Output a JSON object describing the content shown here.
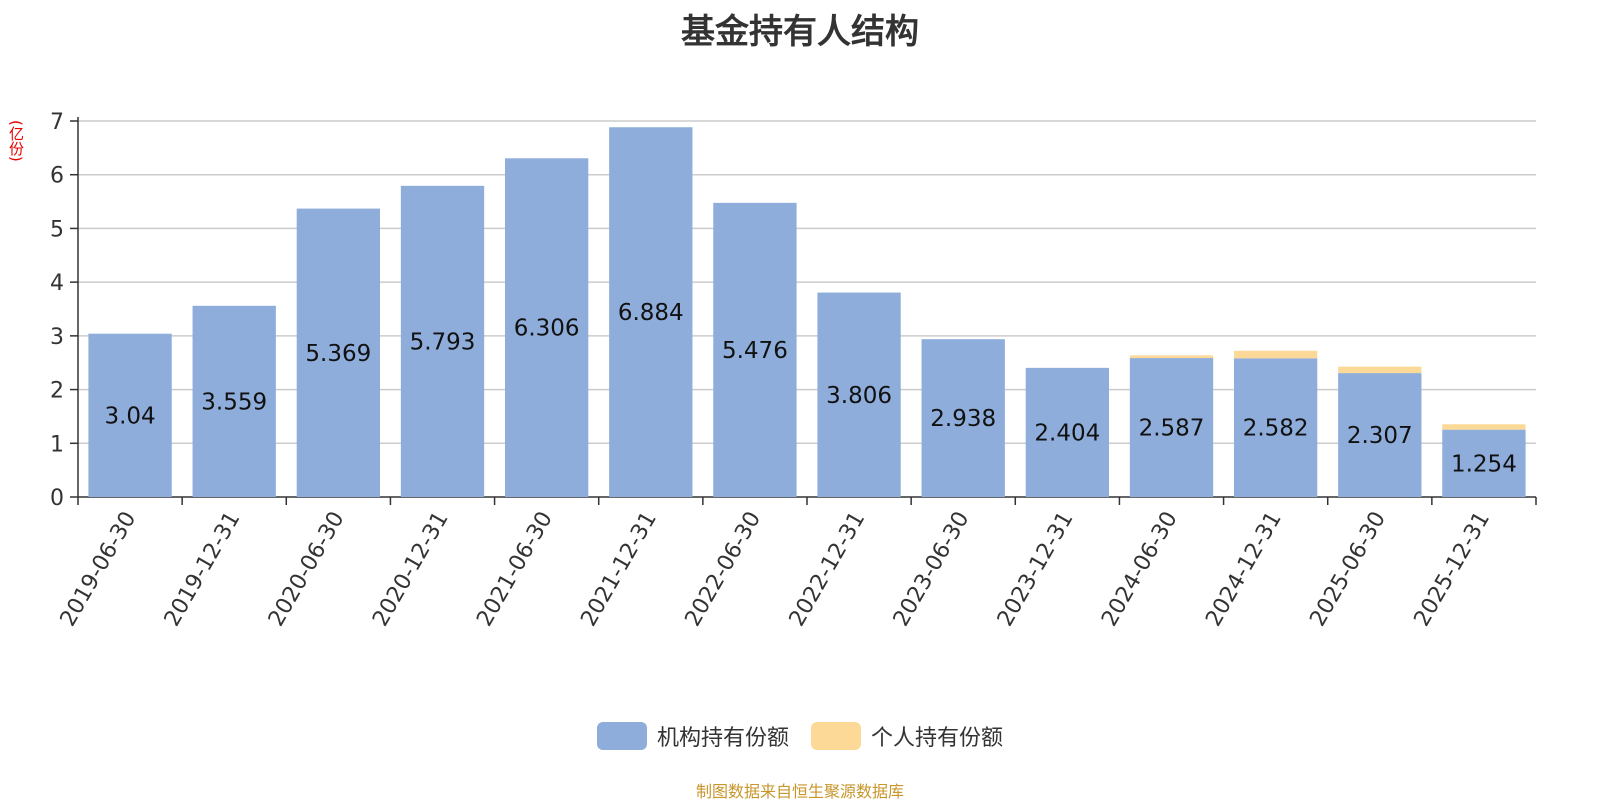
{
  "chart_data": {
    "type": "bar",
    "stacked": true,
    "title": "基金持有人结构",
    "unit_label": "(亿份)",
    "categories": [
      "2019-06-30",
      "2019-12-31",
      "2020-06-30",
      "2020-12-31",
      "2021-06-30",
      "2021-12-31",
      "2022-06-30",
      "2022-12-31",
      "2023-06-30",
      "2023-12-31",
      "2024-06-30",
      "2024-12-31",
      "2025-06-30",
      "2025-12-31"
    ],
    "series": [
      {
        "name": "机构持有份额",
        "color": "#8eadda",
        "values": [
          3.04,
          3.559,
          5.369,
          5.793,
          6.306,
          6.884,
          5.476,
          3.806,
          2.938,
          2.404,
          2.587,
          2.582,
          2.307,
          1.254
        ]
      },
      {
        "name": "个人持有份额",
        "color": "#fdd997",
        "values": [
          0.0,
          0.0,
          0.0,
          0.0,
          0.0,
          0.0,
          0.0,
          0.0,
          0.0,
          0.0,
          0.05,
          0.14,
          0.12,
          0.1
        ]
      }
    ],
    "y_ticks": [
      "0",
      "1",
      "2",
      "3",
      "4",
      "5",
      "6",
      "7"
    ],
    "ylim": [
      0,
      7
    ],
    "grid": true,
    "legend_position": "bottom-center",
    "source_note": "制图数据来自恒生聚源数据库"
  }
}
